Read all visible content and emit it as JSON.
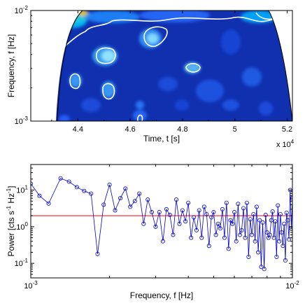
{
  "colors": {
    "wavelet_background": "#1030b0",
    "significance_contour": "#ffffff",
    "line_series": "#0000cc",
    "threshold_line": "#ff0000",
    "axis": "#000000"
  },
  "chart_data": [
    {
      "type": "heatmap",
      "title": "",
      "xlabel": "Time, t [s]",
      "ylabel": "Frequency, f [Hz]",
      "x_multiplier_label": "x 10",
      "x_multiplier_exp": "4",
      "x_ticks": [
        {
          "value": 4.4,
          "label": "4.4"
        },
        {
          "value": 4.6,
          "label": "4.6"
        },
        {
          "value": 4.8,
          "label": "4.8"
        },
        {
          "value": 5.0,
          "label": "5"
        },
        {
          "value": 5.2,
          "label": "5.2"
        }
      ],
      "xlim": [
        4.22,
        5.22
      ],
      "y_scale": "log",
      "ylim": [
        0.001,
        0.01
      ],
      "y_ticks": [
        {
          "value": 0.001,
          "base": "10",
          "exp": "-3"
        },
        {
          "value": 0.01,
          "base": "10",
          "exp": "-2"
        }
      ],
      "colormap": "jet",
      "cone_of_influence": true,
      "grid": false
    },
    {
      "type": "line",
      "title": "",
      "xlabel": "Frequency, f [Hz]",
      "ylabel_main": "Power [cts s",
      "ylabel_mid": " Hz",
      "ylabel_end": "]",
      "ylabel_exp": "-1",
      "x_scale": "log",
      "y_scale": "log",
      "xlim": [
        0.001,
        0.01
      ],
      "ylim": [
        0.04,
        50
      ],
      "x_ticks": [
        {
          "value": 0.001,
          "base": "10",
          "exp": "-3"
        },
        {
          "value": 0.01,
          "base": "10",
          "exp": "-2"
        }
      ],
      "y_ticks": [
        {
          "value": 10,
          "base": "10",
          "exp": "1"
        },
        {
          "value": 1,
          "base": "10",
          "exp": "0"
        },
        {
          "value": 0.1,
          "base": "10",
          "exp": "-1"
        }
      ],
      "threshold": 2.0,
      "marker": "circle",
      "grid": false,
      "series": [
        {
          "x": [
            0.001,
            0.00108,
            0.00117,
            0.0013,
            0.0014,
            0.0015,
            0.0016,
            0.0017,
            0.0018,
            0.0019,
            0.002,
            0.0021,
            0.0022,
            0.0023,
            0.0024,
            0.0025,
            0.0026,
            0.0027,
            0.0028,
            0.0029,
            0.003,
            0.0031,
            0.0032,
            0.0033,
            0.0034,
            0.0035,
            0.0036,
            0.0037,
            0.0038,
            0.0039,
            0.004,
            0.0041,
            0.0042,
            0.0043,
            0.0044,
            0.0045,
            0.0046,
            0.0047,
            0.0048,
            0.0049,
            0.005,
            0.0051,
            0.0052,
            0.0053,
            0.0054,
            0.0055,
            0.0056,
            0.0057,
            0.0058,
            0.0059,
            0.006,
            0.0061,
            0.0062,
            0.0063,
            0.0064,
            0.0065,
            0.0066,
            0.0067,
            0.0068,
            0.0069,
            0.007,
            0.0071,
            0.0072,
            0.0073,
            0.0074,
            0.0075,
            0.0076,
            0.0077,
            0.0078,
            0.0079,
            0.008,
            0.0081,
            0.0082,
            0.0083,
            0.0084,
            0.0085,
            0.0086,
            0.0087,
            0.0088,
            0.0089,
            0.009,
            0.0091,
            0.0092,
            0.0093,
            0.0094,
            0.0095,
            0.0096,
            0.0097,
            0.0098,
            0.0099,
            0.01
          ],
          "y": [
            15,
            7,
            4.3,
            21,
            17,
            12,
            9.5,
            8,
            0.18,
            4,
            14,
            2.8,
            6,
            11,
            3.5,
            5,
            8,
            1.2,
            5.5,
            2.5,
            1.0,
            2.5,
            0.4,
            3,
            2.1,
            0.6,
            5.5,
            1.2,
            2.8,
            1.4,
            4.5,
            0.5,
            1.8,
            0.8,
            2.8,
            0.5,
            3.5,
            2.2,
            0.3,
            1.8,
            2.5,
            0.6,
            1.2,
            0.9,
            3,
            0.5,
            4.5,
            0.25,
            1.5,
            1.2,
            2.5,
            0.4,
            4.2,
            0.6,
            0.8,
            3.2,
            0.5,
            4.5,
            0.15,
            1.6,
            0.6,
            2.2,
            0.4,
            3.5,
            0.2,
            1.5,
            0.08,
            1.3,
            0.07,
            2.1,
            0.7,
            0.5,
            0.6,
            1.5,
            2.6,
            0.5,
            1.4,
            0.15,
            3.8,
            0.4,
            2.2,
            0.7,
            0.3,
            1.2,
            0.12,
            2.4,
            1.5,
            0.45,
            10,
            0.9,
            6
          ]
        }
      ]
    }
  ]
}
